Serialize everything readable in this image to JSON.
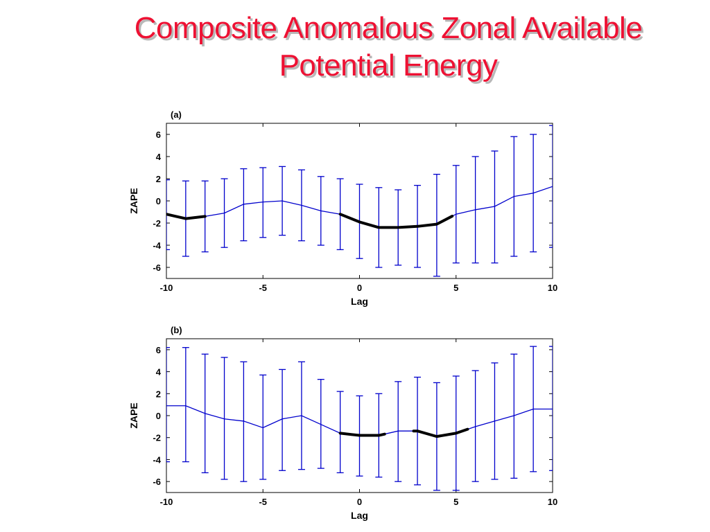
{
  "slide": {
    "title_line1": "Composite Anomalous Zonal Available",
    "title_line2": "Potential Energy"
  },
  "colors": {
    "title": "#ee1133",
    "series": "#0000cc",
    "highlight": "#000000"
  },
  "chart_data": [
    {
      "type": "line",
      "panel_label": "(a)",
      "xlabel": "Lag",
      "ylabel": "ZAPE",
      "xlim": [
        -10,
        10
      ],
      "ylim": [
        -7,
        7
      ],
      "xticks": [
        -10,
        -5,
        0,
        5,
        10
      ],
      "yticks": [
        -6,
        -4,
        -2,
        0,
        2,
        4,
        6
      ],
      "grid": false,
      "x": [
        -10,
        -9,
        -8,
        -7,
        -6,
        -5,
        -4,
        -3,
        -2,
        -1,
        0,
        1,
        2,
        3,
        4,
        5,
        6,
        7,
        8,
        9,
        10
      ],
      "mean": [
        -1.2,
        -1.6,
        -1.4,
        -1.1,
        -0.3,
        -0.1,
        0.0,
        -0.4,
        -0.9,
        -1.2,
        -1.9,
        -2.4,
        -2.4,
        -2.3,
        -2.1,
        -1.2,
        -0.8,
        -0.5,
        0.4,
        0.7,
        1.3
      ],
      "upper": [
        1.9,
        1.8,
        1.8,
        2.0,
        2.9,
        3.0,
        3.1,
        2.8,
        2.2,
        2.0,
        1.5,
        1.2,
        1.0,
        1.4,
        2.4,
        3.2,
        4.0,
        4.5,
        5.8,
        6.0,
        6.8
      ],
      "lower": [
        -4.4,
        -5.0,
        -4.6,
        -4.2,
        -3.6,
        -3.3,
        -3.1,
        -3.6,
        -4.0,
        -4.4,
        -5.2,
        -6.0,
        -5.8,
        -6.0,
        -6.8,
        -5.6,
        -5.6,
        -5.6,
        -5.0,
        -4.6,
        -4.2
      ],
      "highlighted_ranges": [
        [
          -10,
          -8
        ],
        [
          -1,
          4.8
        ]
      ]
    },
    {
      "type": "line",
      "panel_label": "(b)",
      "xlabel": "Lag",
      "ylabel": "ZAPE",
      "xlim": [
        -10,
        10
      ],
      "ylim": [
        -7,
        7
      ],
      "xticks": [
        -10,
        -5,
        0,
        5,
        10
      ],
      "yticks": [
        -6,
        -4,
        -2,
        0,
        2,
        4,
        6
      ],
      "grid": false,
      "x": [
        -10,
        -9,
        -8,
        -7,
        -6,
        -5,
        -4,
        -3,
        -2,
        -1,
        0,
        1,
        2,
        3,
        4,
        5,
        6,
        7,
        8,
        9,
        10
      ],
      "mean": [
        0.9,
        0.9,
        0.2,
        -0.3,
        -0.5,
        -1.1,
        -0.3,
        0.0,
        -0.8,
        -1.6,
        -1.8,
        -1.8,
        -1.4,
        -1.4,
        -1.9,
        -1.6,
        -1.0,
        -0.5,
        0.0,
        0.6,
        0.6
      ],
      "upper": [
        6.2,
        6.2,
        5.6,
        5.3,
        4.9,
        3.7,
        4.2,
        4.9,
        3.3,
        2.2,
        1.8,
        2.0,
        3.1,
        3.5,
        3.0,
        3.6,
        4.1,
        4.8,
        5.6,
        6.3,
        6.3
      ],
      "lower": [
        -4.2,
        -4.2,
        -5.2,
        -5.8,
        -6.0,
        -5.8,
        -5.0,
        -4.9,
        -4.8,
        -5.2,
        -5.5,
        -5.6,
        -6.0,
        -6.3,
        -6.8,
        -6.8,
        -6.0,
        -5.8,
        -5.7,
        -5.1,
        -5.0
      ],
      "highlighted_ranges": [
        [
          -1,
          1.3
        ],
        [
          2.8,
          5.6
        ]
      ]
    }
  ]
}
